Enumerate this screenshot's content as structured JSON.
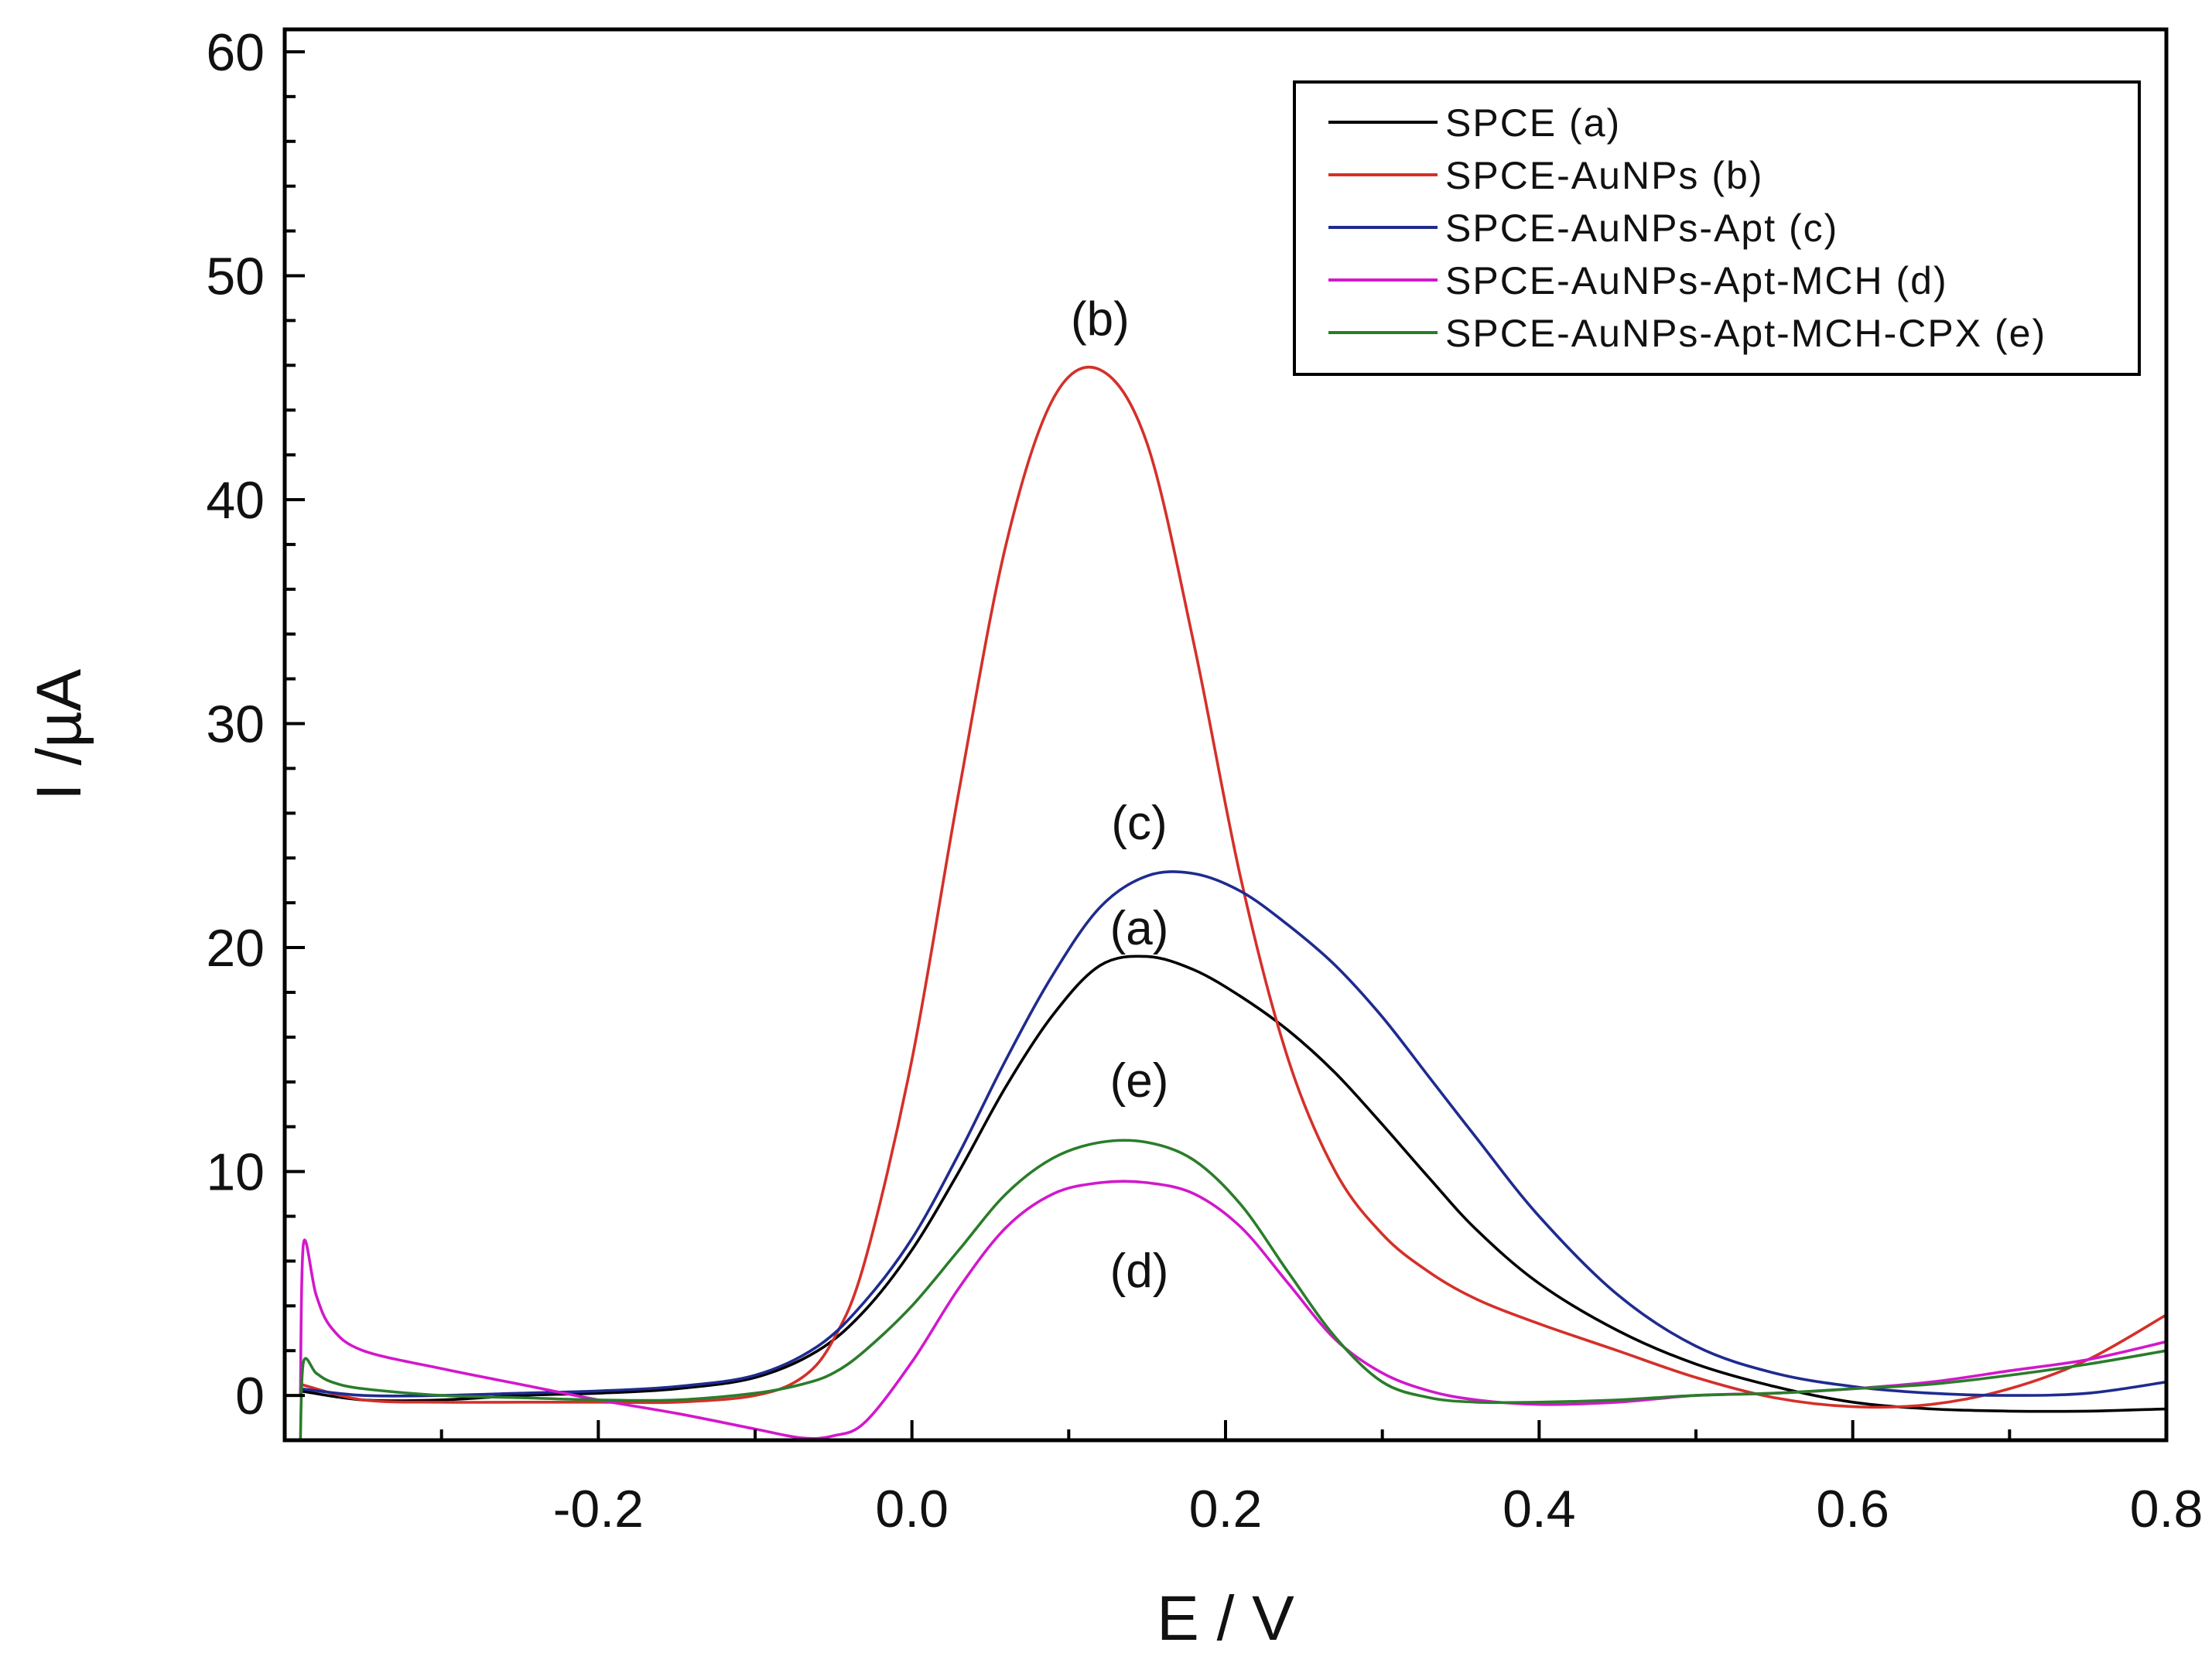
{
  "chart_data": {
    "type": "line",
    "title": "",
    "xlabel": "E / V",
    "ylabel": "I /µA",
    "xlim": [
      -0.4,
      0.8
    ],
    "ylim": [
      -2,
      61
    ],
    "xticks": [
      -0.2,
      0.0,
      0.2,
      0.4,
      0.6,
      0.8
    ],
    "xtick_labels": [
      "-0.2",
      "0.0",
      "0.2",
      "0.4",
      "0.6",
      "0.8"
    ],
    "yticks": [
      0,
      10,
      20,
      30,
      40,
      50,
      60
    ],
    "ytick_labels": [
      "0",
      "10",
      "20",
      "30",
      "40",
      "50",
      "60"
    ],
    "legend_position": "top-right",
    "series": [
      {
        "name": "SPCE (a)",
        "tag": "(a)",
        "color": "#000000",
        "x": [
          -0.39,
          -0.35,
          -0.3,
          -0.25,
          -0.2,
          -0.15,
          -0.1,
          -0.06,
          -0.03,
          0.0,
          0.03,
          0.06,
          0.09,
          0.12,
          0.15,
          0.18,
          0.21,
          0.24,
          0.27,
          0.3,
          0.33,
          0.36,
          0.4,
          0.45,
          0.5,
          0.55,
          0.6,
          0.65,
          0.7,
          0.75,
          0.8
        ],
        "y": [
          0.2,
          -0.2,
          -0.2,
          0.0,
          0.1,
          0.3,
          0.8,
          2.0,
          3.8,
          6.5,
          10.0,
          13.8,
          17.0,
          19.2,
          19.6,
          19.0,
          17.8,
          16.3,
          14.4,
          12.1,
          9.7,
          7.4,
          5.0,
          2.9,
          1.4,
          0.4,
          -0.3,
          -0.6,
          -0.7,
          -0.7,
          -0.6
        ]
      },
      {
        "name": "SPCE-AuNPs (b)",
        "tag": "(b)",
        "color": "#d4302a",
        "x": [
          -0.39,
          -0.35,
          -0.3,
          -0.25,
          -0.2,
          -0.15,
          -0.1,
          -0.07,
          -0.05,
          -0.03,
          0.0,
          0.03,
          0.06,
          0.09,
          0.12,
          0.15,
          0.18,
          0.21,
          0.24,
          0.27,
          0.3,
          0.33,
          0.36,
          0.4,
          0.45,
          0.5,
          0.55,
          0.6,
          0.65,
          0.7,
          0.75,
          0.8
        ],
        "y": [
          0.5,
          -0.2,
          -0.3,
          -0.3,
          -0.3,
          -0.3,
          0.0,
          0.8,
          2.5,
          6.0,
          15.0,
          27.0,
          38.0,
          44.5,
          45.8,
          42.5,
          33.5,
          23.0,
          15.0,
          10.0,
          7.2,
          5.5,
          4.3,
          3.2,
          2.0,
          0.8,
          -0.1,
          -0.5,
          -0.4,
          0.3,
          1.6,
          3.6
        ]
      },
      {
        "name": "SPCE-AuNPs-Apt (c)",
        "tag": "(c)",
        "color": "#1f2b8f",
        "x": [
          -0.39,
          -0.35,
          -0.3,
          -0.25,
          -0.2,
          -0.15,
          -0.1,
          -0.06,
          -0.03,
          0.0,
          0.03,
          0.06,
          0.09,
          0.12,
          0.15,
          0.18,
          0.21,
          0.24,
          0.27,
          0.3,
          0.33,
          0.36,
          0.4,
          0.45,
          0.5,
          0.55,
          0.6,
          0.65,
          0.7,
          0.75,
          0.8
        ],
        "y": [
          0.3,
          0.0,
          0.0,
          0.1,
          0.2,
          0.4,
          0.9,
          2.2,
          4.2,
          7.0,
          10.8,
          15.0,
          18.8,
          21.8,
          23.2,
          23.3,
          22.5,
          21.0,
          19.2,
          16.9,
          14.2,
          11.5,
          8.0,
          4.5,
          2.2,
          1.0,
          0.4,
          0.1,
          0.0,
          0.1,
          0.6
        ]
      },
      {
        "name": "SPCE-AuNPs-Apt-MCH (d)",
        "tag": "(d)",
        "color": "#d218cc",
        "x": [
          -0.39,
          -0.388,
          -0.38,
          -0.37,
          -0.35,
          -0.3,
          -0.25,
          -0.2,
          -0.15,
          -0.1,
          -0.07,
          -0.05,
          -0.03,
          0.0,
          0.03,
          0.06,
          0.09,
          0.12,
          0.15,
          0.18,
          0.21,
          0.24,
          0.27,
          0.3,
          0.33,
          0.36,
          0.4,
          0.45,
          0.5,
          0.55,
          0.6,
          0.65,
          0.7,
          0.75,
          0.8
        ],
        "y": [
          0.0,
          6.8,
          4.5,
          3.0,
          2.0,
          1.2,
          0.5,
          -0.2,
          -0.8,
          -1.5,
          -1.9,
          -1.8,
          -1.2,
          1.5,
          4.8,
          7.5,
          9.0,
          9.5,
          9.5,
          9.0,
          7.5,
          5.0,
          2.5,
          1.0,
          0.2,
          -0.2,
          -0.4,
          -0.3,
          0.0,
          0.1,
          0.3,
          0.6,
          1.1,
          1.6,
          2.4
        ]
      },
      {
        "name": "SPCE-AuNPs-Apt-MCH-CPX (e)",
        "tag": "(e)",
        "color": "#2a7d2a",
        "x": [
          -0.39,
          -0.388,
          -0.38,
          -0.37,
          -0.35,
          -0.3,
          -0.25,
          -0.2,
          -0.15,
          -0.1,
          -0.07,
          -0.05,
          -0.03,
          0.0,
          0.03,
          0.06,
          0.09,
          0.12,
          0.15,
          0.18,
          0.21,
          0.24,
          0.27,
          0.3,
          0.33,
          0.36,
          0.4,
          0.45,
          0.5,
          0.55,
          0.6,
          0.65,
          0.7,
          0.75,
          0.8
        ],
        "y": [
          -2.0,
          1.5,
          1.0,
          0.6,
          0.3,
          0.0,
          -0.1,
          -0.2,
          -0.2,
          0.1,
          0.5,
          1.0,
          2.0,
          4.0,
          6.5,
          9.0,
          10.6,
          11.3,
          11.3,
          10.5,
          8.5,
          5.5,
          2.6,
          0.6,
          -0.1,
          -0.3,
          -0.3,
          -0.2,
          0.0,
          0.1,
          0.3,
          0.5,
          0.9,
          1.4,
          2.0
        ]
      }
    ],
    "annotations": [
      {
        "text": "(b)",
        "x": 0.12,
        "y": 48.1
      },
      {
        "text": "(c)",
        "x": 0.145,
        "y": 25.6
      },
      {
        "text": "(a)",
        "x": 0.145,
        "y": 20.9
      },
      {
        "text": "(e)",
        "x": 0.145,
        "y": 14.1
      },
      {
        "text": "(d)",
        "x": 0.145,
        "y": 5.6
      }
    ]
  }
}
